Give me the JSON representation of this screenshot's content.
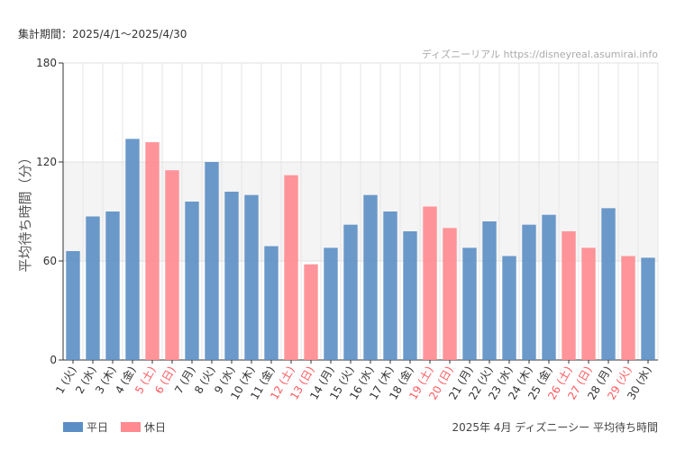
{
  "header": {
    "period": "集計期間：2025/4/1〜2025/4/30",
    "credit": "ディズニーリアル https://disneyreal.asumirai.info"
  },
  "chart_data": {
    "type": "bar",
    "title": "2025年 4月 ディズニーシー 平均待ち時間",
    "ylabel": "平均待ち時間（分）",
    "ylim": [
      0,
      180
    ],
    "yticks": [
      0,
      60,
      120,
      180
    ],
    "grid": true,
    "legend_position": "bottom-left",
    "colors": {
      "weekday": "#5b8ec4",
      "holiday": "#ff8a8f",
      "holiday_label": "#ff5a60"
    },
    "legend": [
      {
        "key": "weekday",
        "label": "平日"
      },
      {
        "key": "holiday",
        "label": "休日"
      }
    ],
    "categories": [
      "1 (火)",
      "2 (水)",
      "3 (木)",
      "4 (金)",
      "5 (土)",
      "6 (日)",
      "7 (月)",
      "8 (火)",
      "9 (水)",
      "10 (木)",
      "11 (金)",
      "12 (土)",
      "13 (日)",
      "14 (月)",
      "15 (火)",
      "16 (水)",
      "17 (木)",
      "18 (金)",
      "19 (土)",
      "20 (日)",
      "21 (月)",
      "22 (火)",
      "23 (水)",
      "24 (木)",
      "25 (金)",
      "26 (土)",
      "27 (日)",
      "28 (月)",
      "29 (火)",
      "30 (水)"
    ],
    "day_type": [
      "weekday",
      "weekday",
      "weekday",
      "weekday",
      "holiday",
      "holiday",
      "weekday",
      "weekday",
      "weekday",
      "weekday",
      "weekday",
      "holiday",
      "holiday",
      "weekday",
      "weekday",
      "weekday",
      "weekday",
      "weekday",
      "holiday",
      "holiday",
      "weekday",
      "weekday",
      "weekday",
      "weekday",
      "weekday",
      "holiday",
      "holiday",
      "weekday",
      "holiday",
      "weekday"
    ],
    "values": [
      66,
      87,
      90,
      134,
      132,
      115,
      96,
      120,
      102,
      100,
      69,
      112,
      58,
      68,
      82,
      100,
      90,
      78,
      93,
      80,
      68,
      84,
      63,
      82,
      88,
      78,
      68,
      92,
      63,
      62
    ]
  }
}
